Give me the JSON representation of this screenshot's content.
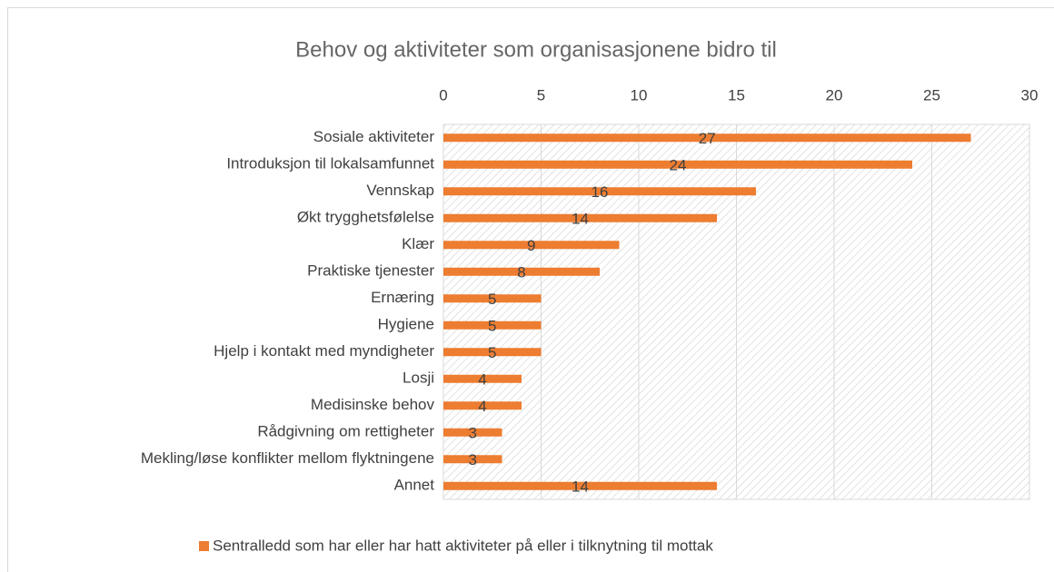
{
  "chart_data": {
    "type": "hbar",
    "title": "Behov og aktiviteter som organisasjonene bidro til",
    "categories": [
      "Sosiale aktiviteter",
      "Introduksjon til lokalsamfunnet",
      "Vennskap",
      "Økt trygghetsfølelse",
      "Klær",
      "Praktiske tjenester",
      "Ernæring",
      "Hygiene",
      "Hjelp i kontakt med myndigheter",
      "Losji",
      "Medisinske behov",
      "Rådgivning om rettigheter",
      "Mekling/løse konflikter mellom flyktningene",
      "Annet"
    ],
    "series": [
      {
        "name": "Sentralledd som har eller har hatt aktiviteter på eller i tilknytning til mottak",
        "color": "#ed7d31",
        "values": [
          27,
          24,
          16,
          14,
          9,
          8,
          5,
          5,
          5,
          4,
          4,
          3,
          3,
          14
        ]
      }
    ],
    "xlim": [
      0,
      30
    ],
    "xticks": [
      0,
      5,
      10,
      15,
      20,
      25,
      30
    ],
    "grid": true,
    "legend": "bottom"
  }
}
